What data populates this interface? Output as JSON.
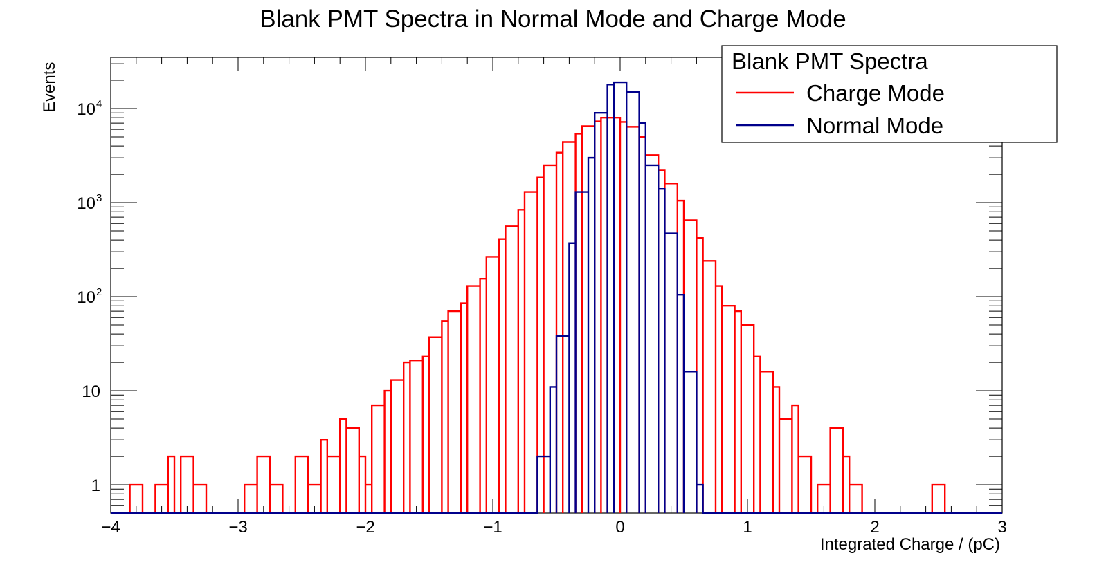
{
  "chart_data": {
    "type": "histogram",
    "title": "Blank PMT Spectra in Normal Mode and Charge Mode",
    "xlabel": "Integrated Charge / (pC)",
    "ylabel": "Events",
    "xlim": [
      -4,
      3
    ],
    "ylim": [
      0.5,
      35000
    ],
    "yscale": "log",
    "grid": false,
    "legend_position": "top-right",
    "legend_title": "Blank PMT Spectra",
    "x_ticks": [
      "−4",
      "−3",
      "−2",
      "−1",
      "0",
      "1",
      "2",
      "3"
    ],
    "y_ticks": [
      {
        "base": "1",
        "exp": ""
      },
      {
        "base": "10",
        "exp": ""
      },
      {
        "base": "10",
        "exp": "2"
      },
      {
        "base": "10",
        "exp": "3"
      },
      {
        "base": "10",
        "exp": "4"
      }
    ],
    "bin_width": 0.1,
    "series": [
      {
        "name": "Charge Mode",
        "color": "#ff0000",
        "bins": [
          {
            "x": -3.8,
            "y": 1
          },
          {
            "x": -3.6,
            "y": 1
          },
          {
            "x": -3.55,
            "y": 2
          },
          {
            "x": -3.4,
            "y": 2
          },
          {
            "x": -3.3,
            "y": 1
          },
          {
            "x": -2.9,
            "y": 1
          },
          {
            "x": -2.8,
            "y": 2
          },
          {
            "x": -2.7,
            "y": 1
          },
          {
            "x": -2.5,
            "y": 2
          },
          {
            "x": -2.4,
            "y": 1
          },
          {
            "x": -2.35,
            "y": 3
          },
          {
            "x": -2.25,
            "y": 2
          },
          {
            "x": -2.2,
            "y": 5
          },
          {
            "x": -2.1,
            "y": 4
          },
          {
            "x": -2.05,
            "y": 2
          },
          {
            "x": -2.0,
            "y": 1
          },
          {
            "x": -1.9,
            "y": 7
          },
          {
            "x": -1.85,
            "y": 10
          },
          {
            "x": -1.75,
            "y": 13
          },
          {
            "x": -1.7,
            "y": 20
          },
          {
            "x": -1.6,
            "y": 21
          },
          {
            "x": -1.55,
            "y": 23
          },
          {
            "x": -1.45,
            "y": 37
          },
          {
            "x": -1.4,
            "y": 55
          },
          {
            "x": -1.3,
            "y": 70
          },
          {
            "x": -1.25,
            "y": 85
          },
          {
            "x": -1.15,
            "y": 130
          },
          {
            "x": -1.1,
            "y": 155
          },
          {
            "x": -1.0,
            "y": 265
          },
          {
            "x": -0.95,
            "y": 410
          },
          {
            "x": -0.85,
            "y": 560
          },
          {
            "x": -0.8,
            "y": 840
          },
          {
            "x": -0.7,
            "y": 1300
          },
          {
            "x": -0.65,
            "y": 1850
          },
          {
            "x": -0.55,
            "y": 2500
          },
          {
            "x": -0.5,
            "y": 3400
          },
          {
            "x": -0.4,
            "y": 4400
          },
          {
            "x": -0.35,
            "y": 5400
          },
          {
            "x": -0.25,
            "y": 6500
          },
          {
            "x": -0.2,
            "y": 7300
          },
          {
            "x": -0.15,
            "y": 8000
          },
          {
            "x": -0.05,
            "y": 8000
          },
          {
            "x": 0.0,
            "y": 7200
          },
          {
            "x": 0.1,
            "y": 6400
          },
          {
            "x": 0.15,
            "y": 5000
          },
          {
            "x": 0.25,
            "y": 3200
          },
          {
            "x": 0.3,
            "y": 2200
          },
          {
            "x": 0.4,
            "y": 1600
          },
          {
            "x": 0.45,
            "y": 1050
          },
          {
            "x": 0.55,
            "y": 650
          },
          {
            "x": 0.6,
            "y": 420
          },
          {
            "x": 0.7,
            "y": 240
          },
          {
            "x": 0.75,
            "y": 130
          },
          {
            "x": 0.85,
            "y": 80
          },
          {
            "x": 0.9,
            "y": 70
          },
          {
            "x": 1.0,
            "y": 50
          },
          {
            "x": 1.05,
            "y": 23
          },
          {
            "x": 1.15,
            "y": 16
          },
          {
            "x": 1.2,
            "y": 11
          },
          {
            "x": 1.3,
            "y": 5
          },
          {
            "x": 1.35,
            "y": 7
          },
          {
            "x": 1.45,
            "y": 2
          },
          {
            "x": 1.6,
            "y": 1
          },
          {
            "x": 1.7,
            "y": 4
          },
          {
            "x": 1.75,
            "y": 2
          },
          {
            "x": 1.85,
            "y": 1
          },
          {
            "x": 2.5,
            "y": 1
          }
        ]
      },
      {
        "name": "Normal Mode",
        "color": "#00008b",
        "bins": [
          {
            "x": -0.6,
            "y": 2
          },
          {
            "x": -0.55,
            "y": 11
          },
          {
            "x": -0.45,
            "y": 38
          },
          {
            "x": -0.4,
            "y": 370
          },
          {
            "x": -0.3,
            "y": 1300
          },
          {
            "x": -0.25,
            "y": 3000
          },
          {
            "x": -0.15,
            "y": 9000
          },
          {
            "x": -0.1,
            "y": 18000
          },
          {
            "x": 0.0,
            "y": 19000
          },
          {
            "x": 0.1,
            "y": 15000
          },
          {
            "x": 0.15,
            "y": 7000
          },
          {
            "x": 0.25,
            "y": 2500
          },
          {
            "x": 0.3,
            "y": 1400
          },
          {
            "x": 0.4,
            "y": 470
          },
          {
            "x": 0.45,
            "y": 105
          },
          {
            "x": 0.55,
            "y": 16
          },
          {
            "x": 0.6,
            "y": 1
          }
        ]
      }
    ]
  }
}
